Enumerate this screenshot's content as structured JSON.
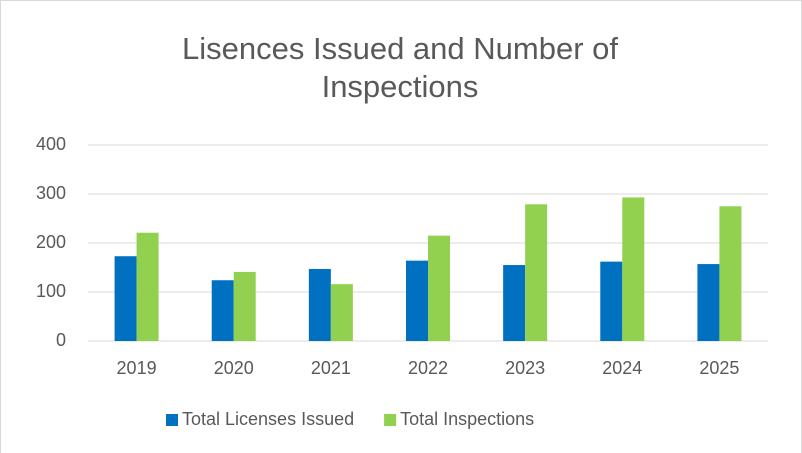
{
  "chart_data": {
    "type": "bar",
    "title": "Lisences Issued and Number of Inspections",
    "categories": [
      "2019",
      "2020",
      "2021",
      "2022",
      "2023",
      "2024",
      "2025"
    ],
    "series": [
      {
        "name": "Total Licenses Issued",
        "color": "#0070c0",
        "values": [
          173,
          124,
          147,
          164,
          155,
          162,
          157
        ]
      },
      {
        "name": "Total Inspections",
        "color": "#92d050",
        "values": [
          221,
          141,
          116,
          215,
          279,
          293,
          275
        ]
      }
    ],
    "ylim": [
      0,
      400
    ],
    "yticks": [
      0,
      100,
      200,
      300,
      400
    ],
    "grid": true,
    "legend": "bottom"
  }
}
